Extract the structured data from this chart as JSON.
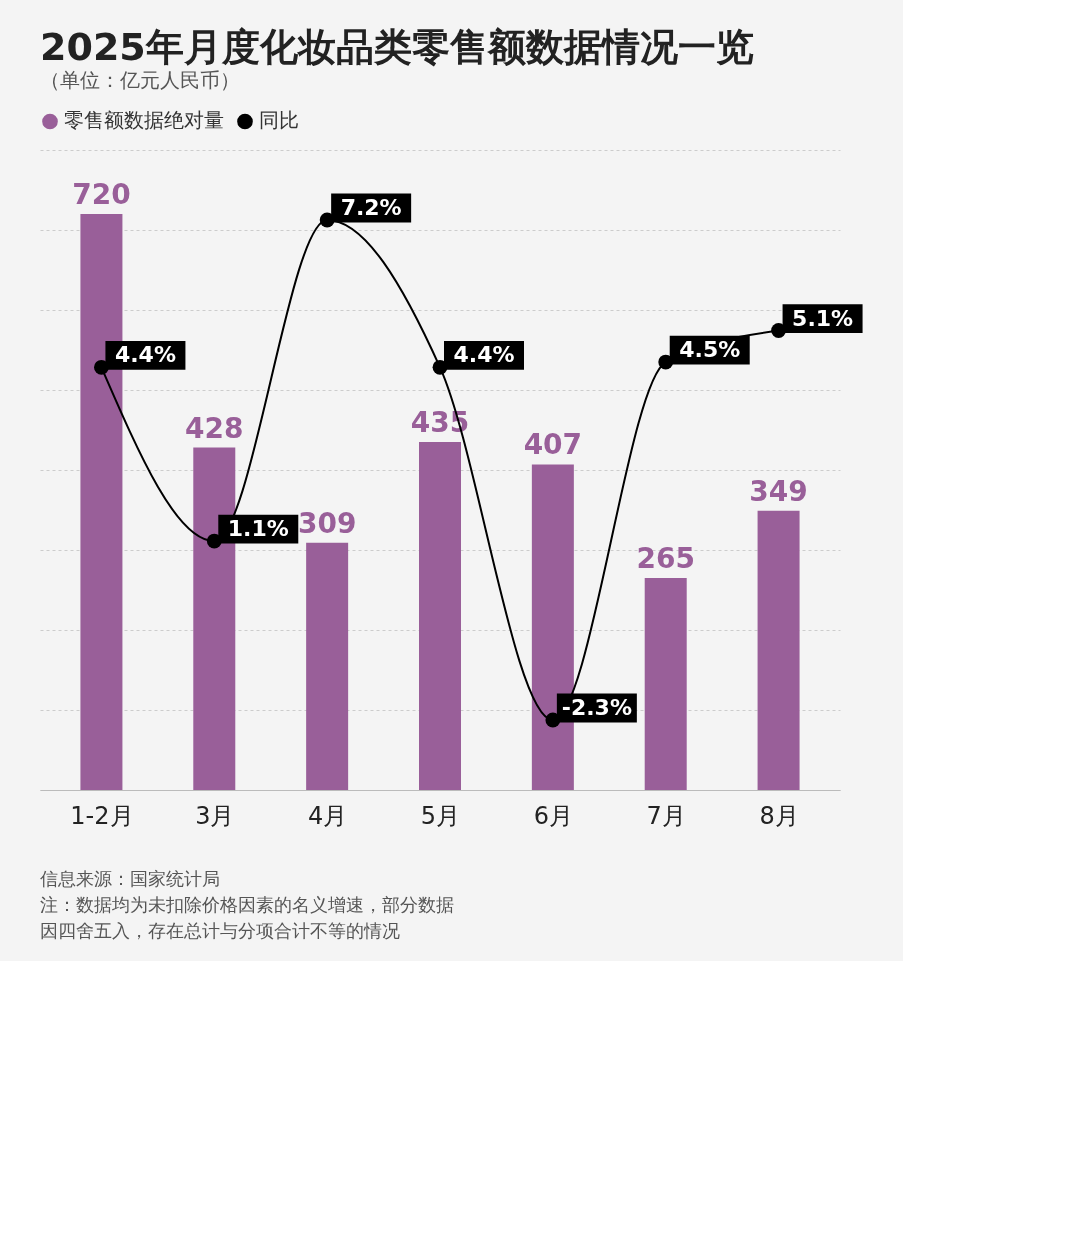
{
  "chart_data": {
    "type": "bar",
    "title": "2025年月度化妆品类零售额数据情况一览",
    "subtitle": "（单位：亿元人民币）",
    "categories": [
      "1-2月",
      "3月",
      "4月",
      "5月",
      "6月",
      "7月",
      "8月"
    ],
    "series": [
      {
        "name": "零售额数据绝对量",
        "color": "#995f99",
        "values": [
          720,
          428,
          309,
          435,
          407,
          265,
          349
        ]
      },
      {
        "name": "同比",
        "type": "line",
        "axis": "y2",
        "color": "#000000",
        "marker": "circle",
        "values": [
          4.4,
          1.1,
          7.2,
          4.4,
          -2.3,
          4.5,
          5.1
        ],
        "value_labels": [
          "4.4%",
          "1.1%",
          "7.2%",
          "4.4%",
          "-2.3%",
          "4.5%",
          "5.1%"
        ]
      }
    ],
    "data_labels": true,
    "ylim": [
      0,
      800
    ],
    "yticks": [
      {
        "value": 0,
        "label": null
      },
      {
        "value": 100,
        "label": null
      },
      {
        "value": 200,
        "label": null
      },
      {
        "value": 300,
        "label": null
      },
      {
        "value": 400,
        "label": null
      },
      {
        "value": 500,
        "label": null
      },
      {
        "value": 600,
        "label": null
      },
      {
        "value": 700,
        "label": null
      },
      {
        "value": 800,
        "label": null
      }
    ],
    "tick_labels": "x",
    "grid": "y",
    "legend": "top left",
    "annotations": [
      "信息来源：国家统计局",
      "注：数据均为未扣除价格因素的名义增速，部分数据",
      "因四舍五入，存在总计与分项合计不等的情况"
    ]
  }
}
